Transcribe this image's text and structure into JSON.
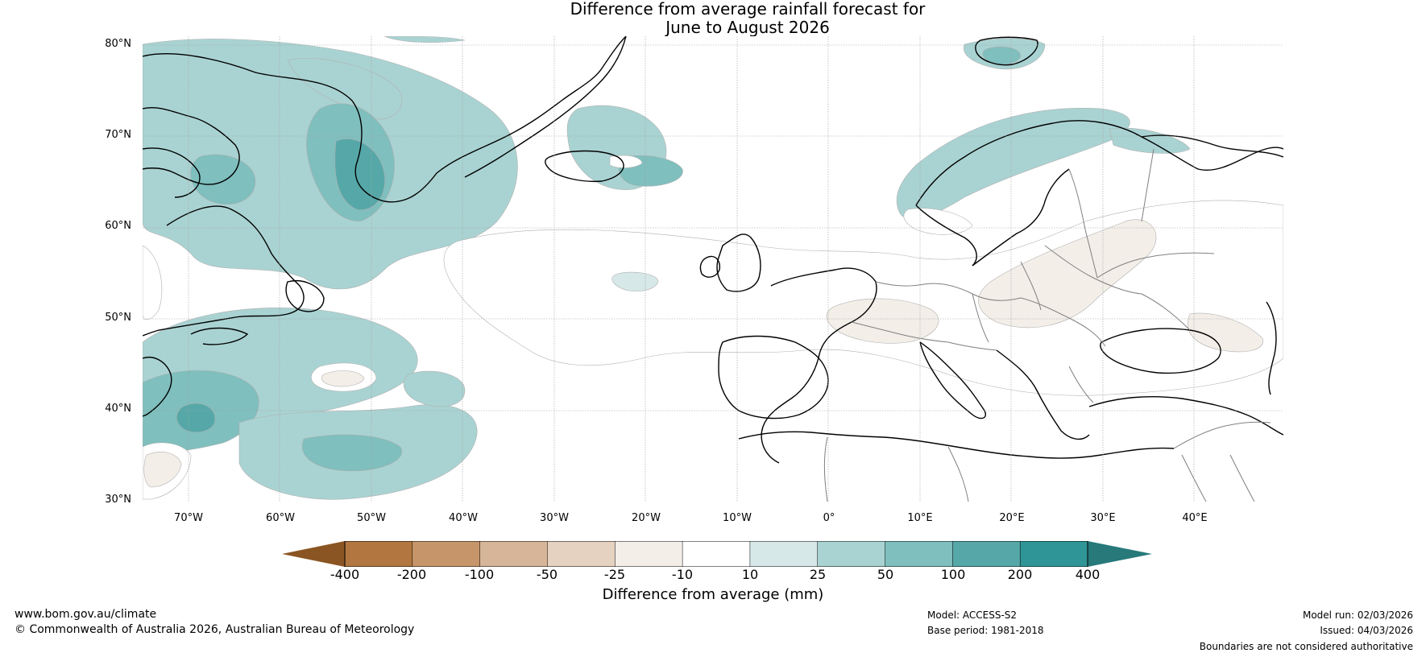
{
  "title_line1": "Difference from average rainfall forecast for",
  "title_line2": "June to August 2026",
  "lat_labels": [
    "80°N",
    "70°N",
    "60°N",
    "50°N",
    "40°N",
    "30°N"
  ],
  "lon_labels": [
    "70°W",
    "60°W",
    "50°W",
    "40°W",
    "30°W",
    "20°W",
    "10°W",
    "0°",
    "10°E",
    "20°E",
    "30°E",
    "40°E"
  ],
  "colorbar": {
    "title": "Difference from average (mm)",
    "labels": [
      "-400",
      "-200",
      "-100",
      "-50",
      "-25",
      "-10",
      "10",
      "25",
      "50",
      "100",
      "200",
      "400"
    ],
    "colors": {
      "below_min": "#8a5523",
      "bins": [
        "#b27640",
        "#c6956a",
        "#d6b598",
        "#e6d2c0",
        "#f3eee8",
        "#ffffff",
        "#d6e8e7",
        "#a9d3d2",
        "#7fbfbe",
        "#56a8a8",
        "#2f9596"
      ],
      "above_max": "#27797a"
    }
  },
  "map_colors": {
    "coast": "#000000",
    "border": "#808080",
    "grid": "#a0a0a0"
  },
  "footer": {
    "url": "www.bom.gov.au/climate",
    "copyright": "© Commonwealth of Australia 2026, Australian Bureau of Meteorology",
    "model": "Model: ACCESS-S2",
    "base_period": "Base period: 1981-2018",
    "model_run": "Model run: 02/03/2026",
    "issued": "Issued: 04/03/2026",
    "disclaimer": "Boundaries are not considered authoritative"
  }
}
